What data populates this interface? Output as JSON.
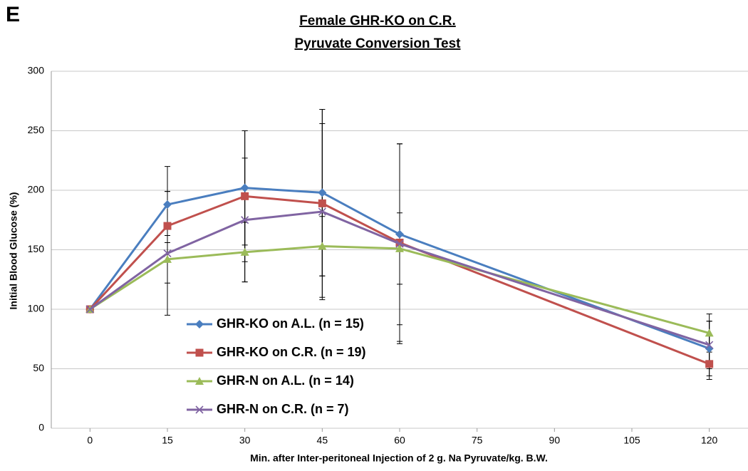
{
  "chart_data": {
    "type": "line",
    "panel_label": "E",
    "title": "Female GHR-KO on C.R.",
    "subtitle": "Pyruvate Conversion Test",
    "x_label": "Min. after Inter-peritoneal Injection of 2 g. Na Pyruvate/kg. B.W.",
    "y_label": "Initial Blood Glucose (%)",
    "x": [
      0,
      15,
      30,
      45,
      60,
      120
    ],
    "xlim": [
      -7.5,
      127.5
    ],
    "xticks": [
      0,
      15,
      30,
      45,
      60,
      75,
      90,
      105,
      120
    ],
    "ylim": [
      0,
      300
    ],
    "yticks": [
      0,
      50,
      100,
      150,
      200,
      250,
      300
    ],
    "grid": true,
    "legend": "lower left",
    "series": [
      {
        "name": "GHR-KO on A.L. (n = 15)",
        "color": "#4a7ebf",
        "marker": "diamond",
        "values": [
          100,
          188,
          202,
          198,
          163,
          67
        ],
        "errors": [
          0,
          32,
          48,
          70,
          76,
          23
        ]
      },
      {
        "name": "GHR-KO on C.R. (n = 19)",
        "color": "#c0504d",
        "marker": "square",
        "values": [
          100,
          170,
          195,
          189,
          156,
          54
        ],
        "errors": [
          0,
          29,
          55,
          79,
          83,
          13
        ]
      },
      {
        "name": "GHR-N on A.L. (n = 14)",
        "color": "#9bbb59",
        "marker": "triangle",
        "values": [
          100,
          142,
          148,
          153,
          151,
          80
        ],
        "errors": [
          0,
          20,
          25,
          25,
          30,
          16
        ]
      },
      {
        "name": "GHR-N on C.R. (n = 7)",
        "color": "#8064a2",
        "marker": "cross",
        "values": [
          100,
          147,
          175,
          182,
          155,
          70
        ],
        "errors": [
          0,
          52,
          52,
          74,
          84,
          20
        ]
      }
    ]
  }
}
